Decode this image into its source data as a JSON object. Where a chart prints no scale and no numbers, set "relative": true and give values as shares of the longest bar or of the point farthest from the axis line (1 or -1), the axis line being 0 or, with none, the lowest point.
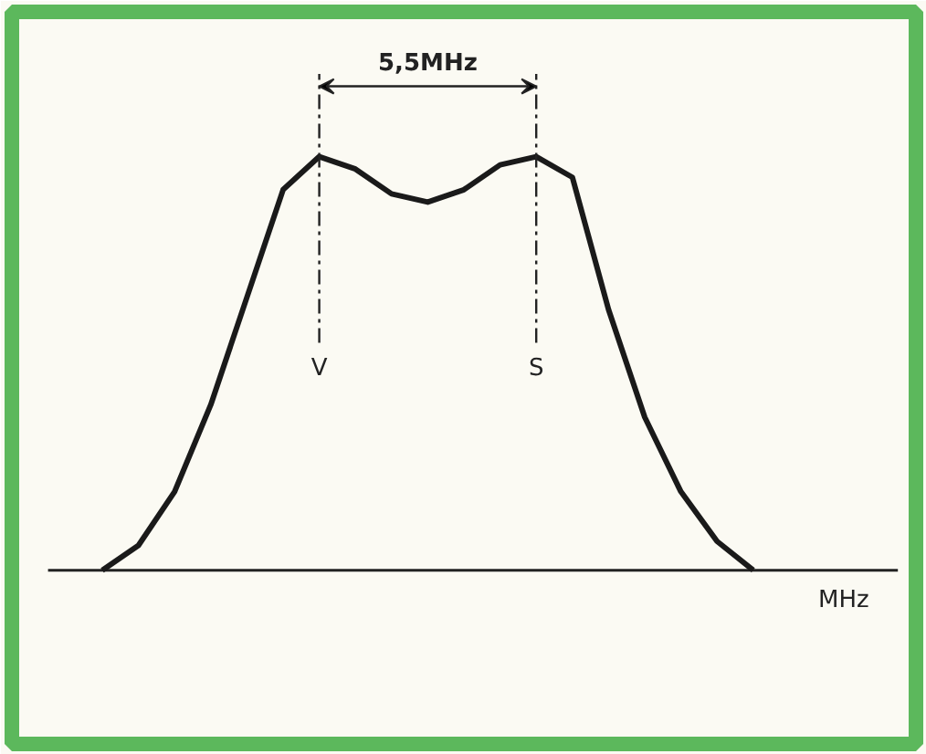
{
  "chart_data": {
    "type": "line",
    "relative": true,
    "xlabel": "MHz",
    "categories": [
      null,
      null,
      null,
      null,
      null,
      null,
      null,
      null,
      null,
      null,
      null,
      null,
      null,
      null,
      null,
      null,
      null,
      null,
      null
    ],
    "series": [
      {
        "color": "#1a1a1a",
        "values": [
          0,
          0.06,
          0.19,
          0.4,
          0.66,
          0.92,
          1.0,
          0.97,
          0.91,
          0.89,
          0.92,
          0.98,
          1.0,
          0.95,
          0.63,
          0.37,
          0.19,
          0.07,
          0
        ]
      }
    ],
    "annotations": [
      "5,5MHz",
      "V",
      "S"
    ],
    "grid": false,
    "marker": "none",
    "line_style": "solid"
  }
}
